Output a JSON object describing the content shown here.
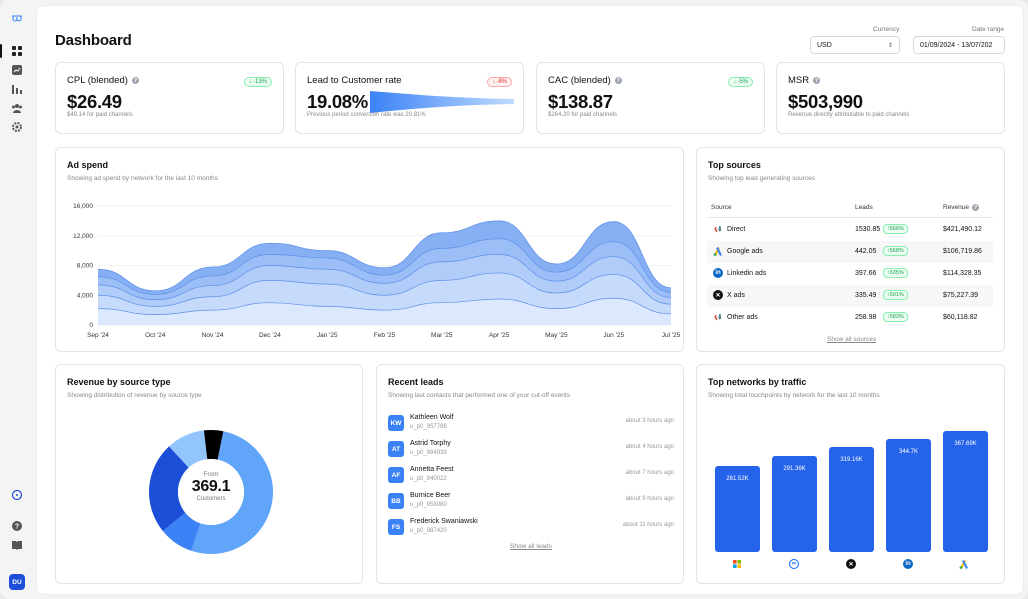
{
  "header": {
    "title": "Dashboard"
  },
  "filters": {
    "currency_label": "Currency",
    "currency_value": "USD",
    "date_label": "Date range",
    "date_value": "01/09/2024 - 13/07/202"
  },
  "kpis": [
    {
      "title": "CPL (blended)",
      "value": "$26.49",
      "sub": "$49.14 for paid channels",
      "badge": "-13%",
      "trend": "down-good"
    },
    {
      "title": "Lead to Customer rate",
      "value": "19.08%",
      "sub": "Previous period conversion rate was 20.81%",
      "badge": "-8%",
      "trend": "down-bad"
    },
    {
      "title": "CAC (blended)",
      "value": "$138.87",
      "sub": "$264.20 for paid channels",
      "badge": "-5%",
      "trend": "down-good"
    },
    {
      "title": "MSR",
      "value": "$503,990",
      "sub": "Revenue directly attributable to paid channels"
    }
  ],
  "ad_spend": {
    "title": "Ad spend",
    "subtitle": "Showing ad spend by network for the last 10 months"
  },
  "chart_data": {
    "type": "area",
    "stacked": true,
    "x": [
      "Sep '24",
      "Oct '24",
      "Nov '24",
      "Dec '24",
      "Jan '25",
      "Feb '25",
      "Mar '25",
      "Apr '25",
      "May '25",
      "Jun '25",
      "Jul '25"
    ],
    "yticks": [
      0,
      4000,
      8000,
      12000,
      16000
    ],
    "ylim": [
      0,
      16000
    ],
    "grid": true,
    "series": [
      {
        "values": [
          2200,
          1400,
          2000,
          3000,
          2500,
          2000,
          3000,
          3500,
          2200,
          3600,
          1500
        ]
      },
      {
        "values": [
          1800,
          1100,
          1800,
          3000,
          3000,
          2000,
          3000,
          3500,
          2100,
          3200,
          1300
        ]
      },
      {
        "values": [
          1400,
          900,
          1500,
          2000,
          2000,
          1600,
          2500,
          2500,
          1600,
          2400,
          900
        ]
      },
      {
        "values": [
          1100,
          700,
          1300,
          1500,
          1500,
          1100,
          1800,
          2100,
          1200,
          2000,
          700
        ]
      },
      {
        "values": [
          1000,
          500,
          1200,
          1500,
          1000,
          1000,
          2100,
          2400,
          1100,
          2700,
          600
        ]
      }
    ],
    "colors": [
      "#dbe8fd",
      "#c6dafb",
      "#b1ccf9",
      "#9cbef7",
      "#86aff4"
    ]
  },
  "top_sources": {
    "title": "Top sources",
    "subtitle": "Showing top lead generating sources",
    "headers": {
      "source": "Source",
      "leads": "Leads",
      "revenue": "Revenue"
    },
    "rows": [
      {
        "name": "Direct",
        "leads": "1530.85",
        "pct": "566%",
        "revenue": "$421,490.12",
        "icon": "megaphone-icon"
      },
      {
        "name": "Google ads",
        "leads": "442.05",
        "pct": "568%",
        "revenue": "$106,719.86",
        "icon": "google-ads-icon"
      },
      {
        "name": "Linkedin ads",
        "leads": "397.66",
        "pct": "635%",
        "revenue": "$114,328.35",
        "icon": "linkedin-icon"
      },
      {
        "name": "X ads",
        "leads": "335.49",
        "pct": "591%",
        "revenue": "$75,227.39",
        "icon": "x-icon"
      },
      {
        "name": "Other ads",
        "leads": "258.98",
        "pct": "583%",
        "revenue": "$60,118.82",
        "icon": "megaphone-icon"
      }
    ],
    "link": "Show all sources"
  },
  "revenue": {
    "title": "Revenue by source type",
    "subtitle": "Showing distribution of revenue by source type",
    "center_label": "From",
    "center_value": "369.1",
    "center_unit": "Customers",
    "slices": [
      0.52,
      0.09,
      0.24,
      0.1,
      0.05
    ],
    "colors": [
      "#60a5fa",
      "#3b82f6",
      "#1d4ed8",
      "#93c5fd",
      "#000000"
    ]
  },
  "leads": {
    "title": "Recent leads",
    "subtitle": "Showing last contacts that performed one of your cut-off events",
    "items": [
      {
        "initials": "KW",
        "name": "Kathleen Wolf",
        "id": "u_p0_957786",
        "time": "about 3 hours ago"
      },
      {
        "initials": "AT",
        "name": "Astrid Torphy",
        "id": "u_p0_984939",
        "time": "about 4 hours ago"
      },
      {
        "initials": "AF",
        "name": "Annetta Feest",
        "id": "u_p0_940022",
        "time": "about 7 hours ago"
      },
      {
        "initials": "BB",
        "name": "Burnice Beer",
        "id": "u_p0_958080",
        "time": "about 9 hours ago"
      },
      {
        "initials": "FS",
        "name": "Frederick Swaniawski",
        "id": "u_p0_987420",
        "time": "about 11 hours ago"
      }
    ],
    "link": "Show all leads"
  },
  "networks": {
    "title": "Top networks by traffic",
    "subtitle": "Showing total touchpoints by network for the last 10 months",
    "values": [
      261.52,
      291.36,
      319.16,
      344.7,
      367.69
    ],
    "labels": [
      "261.52K",
      "291.36K",
      "319.16K",
      "344.7K",
      "367.69K"
    ],
    "icons": [
      "microsoft-icon",
      "meta-icon",
      "x-icon",
      "linkedin-icon",
      "google-ads-icon"
    ],
    "max": 380
  },
  "sidebar": {
    "avatar": "DU"
  }
}
